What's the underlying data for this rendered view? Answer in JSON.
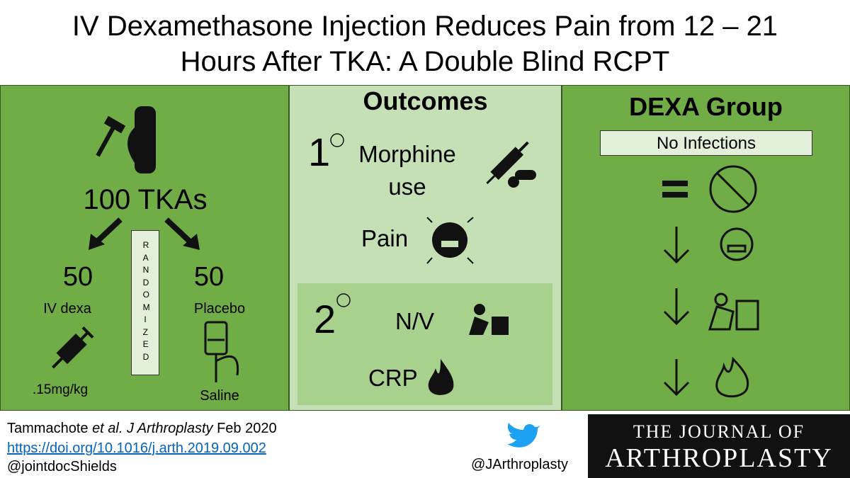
{
  "title": {
    "lines": [
      "IV Dexamethasone Injection Reduces Pain from 12 – 21",
      "Hours After TKA: A Double Blind RCPT"
    ]
  },
  "left": {
    "total": "100 TKAs",
    "randomized": "RANDOMIZED",
    "arms": [
      {
        "n": "50",
        "label": "IV dexa",
        "detail": ".15mg/kg"
      },
      {
        "n": "50",
        "label": "Placebo",
        "detail": "Saline"
      }
    ]
  },
  "middle": {
    "heading": "Outcomes",
    "primary": {
      "number": "1",
      "items": [
        "Morphine",
        "use",
        "Pain"
      ]
    },
    "secondary": {
      "number": "2",
      "items": [
        "N/V",
        "CRP"
      ]
    }
  },
  "right": {
    "heading": "DEXA Group",
    "box": "No Infections"
  },
  "footer": {
    "citation": {
      "author": "Tammachote",
      "etal": "et al.",
      "journal": "J Arthroplasty",
      "date": "Feb 2020"
    },
    "doi": "https://doi.org/10.1016/j.arth.2019.09.002",
    "handle": "@jointdocShields",
    "journal_handle": "@JArthroplasty",
    "logo": [
      "THE JOURNAL OF",
      "ARTHROPLASTY"
    ]
  }
}
